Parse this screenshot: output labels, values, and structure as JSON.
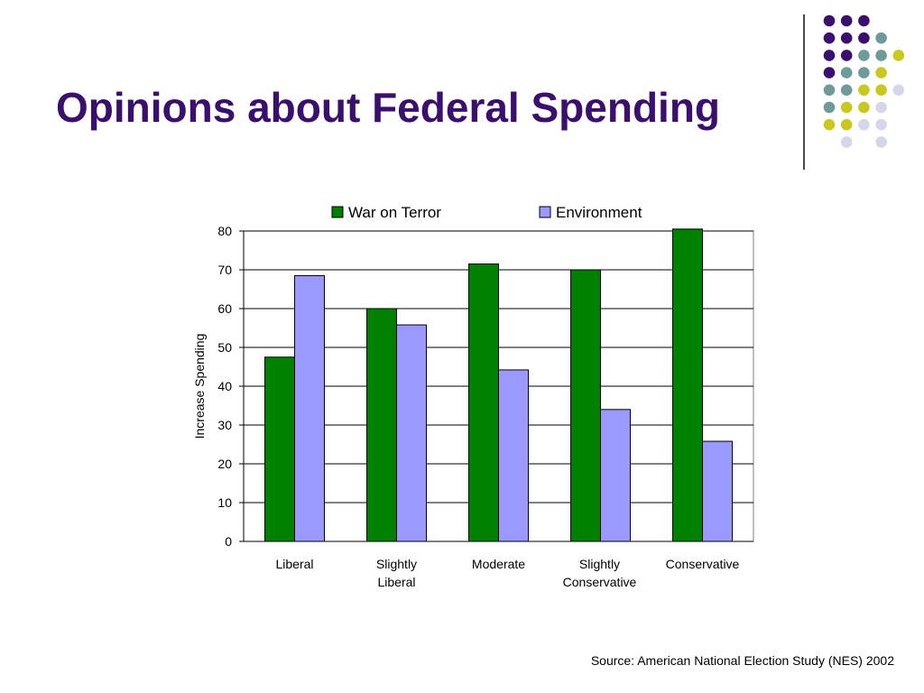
{
  "slide": {
    "title": "Opinions about Federal Spending",
    "source": "Source: American National Election Study (NES) 2002"
  },
  "decoration": {
    "dot_colors": [
      "#3b0f6e",
      "#6f9a9a",
      "#c8c81e",
      "#d6d6ea"
    ],
    "dot_pattern": [
      [
        0,
        0,
        0,
        -1,
        -1
      ],
      [
        0,
        0,
        0,
        1,
        -1
      ],
      [
        0,
        0,
        1,
        1,
        2
      ],
      [
        0,
        1,
        1,
        2,
        -1
      ],
      [
        1,
        1,
        2,
        2,
        3
      ],
      [
        1,
        2,
        2,
        3,
        -1
      ],
      [
        2,
        2,
        3,
        3,
        -1
      ],
      [
        -1,
        3,
        -1,
        3,
        -1
      ]
    ]
  },
  "chart_data": {
    "type": "bar",
    "title": "",
    "xlabel": "",
    "ylabel": "Increase Spending",
    "ylim": [
      0,
      80
    ],
    "yticks": [
      0,
      10,
      20,
      30,
      40,
      50,
      60,
      70,
      80
    ],
    "grid": true,
    "legend": "top",
    "categories": [
      [
        "Liberal"
      ],
      [
        "Slightly",
        "Liberal"
      ],
      [
        "Moderate"
      ],
      [
        "Slightly",
        "Conservative"
      ],
      [
        "Conservative"
      ]
    ],
    "series": [
      {
        "name": "War on Terror",
        "color": "#008000",
        "values": [
          47.5,
          60,
          71.5,
          70,
          80.5
        ]
      },
      {
        "name": "Environment",
        "color": "#9999ff",
        "values": [
          68.5,
          55.8,
          44.2,
          34,
          25.8
        ]
      }
    ]
  }
}
